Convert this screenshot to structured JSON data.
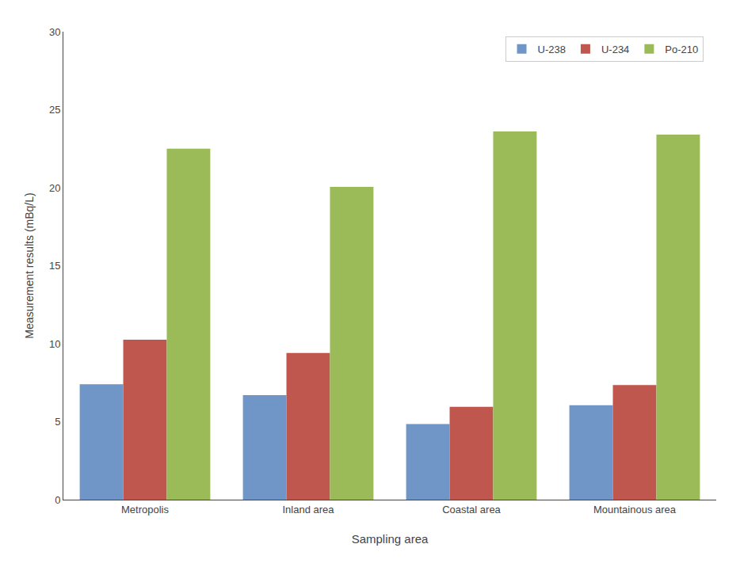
{
  "chart_data": {
    "type": "bar",
    "xlabel": "Sampling area",
    "ylabel": "Measurement results (mBq/L)",
    "categories": [
      "Metropolis",
      "Inland area",
      "Coastal area",
      "Mountainous area"
    ],
    "series": [
      {
        "name": "U-238",
        "color": "#7096C8",
        "values": [
          7.4,
          6.7,
          4.85,
          6.05
        ]
      },
      {
        "name": "U-234",
        "color": "#C0574E",
        "values": [
          10.25,
          9.4,
          5.95,
          7.35
        ]
      },
      {
        "name": "Po-210",
        "color": "#9BBB59",
        "values": [
          22.5,
          20.05,
          23.6,
          23.4
        ]
      }
    ],
    "ylim": [
      0,
      30
    ],
    "yticks": [
      0,
      5,
      10,
      15,
      20,
      25,
      30
    ],
    "grid": false,
    "legend": "upper right"
  }
}
